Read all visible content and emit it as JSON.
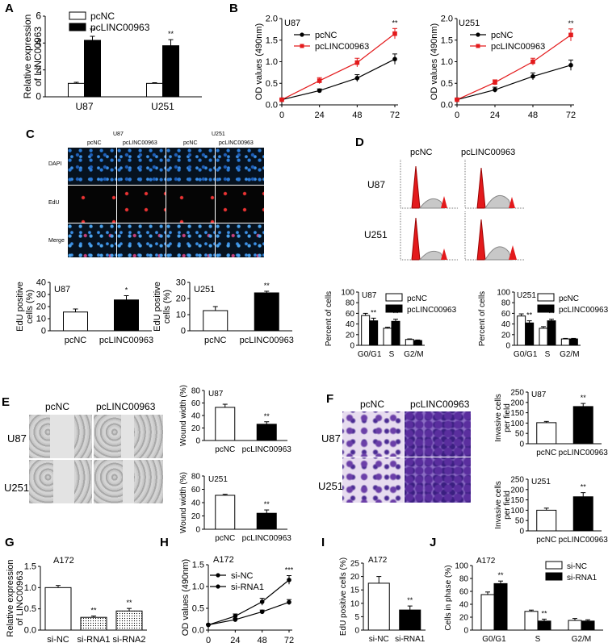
{
  "panels": {
    "A": "A",
    "B": "B",
    "C": "C",
    "D": "D",
    "E": "E",
    "F": "F",
    "G": "G",
    "H": "H",
    "I": "I",
    "J": "J"
  },
  "colors": {
    "black": "#000000",
    "white": "#ffffff",
    "red": "#e31a1c",
    "edu_red": "#e33333",
    "dapi_blue": "#2a7bd8",
    "crystal_violet": "#5a2e9e"
  },
  "labels": {
    "pcNC": "pcNC",
    "pcLINC": "pcLINC00963",
    "U87": "U87",
    "U251": "U251",
    "A172": "A172",
    "DAPI": "DAPI",
    "EdU": "EdU",
    "Merge": "Merge"
  },
  "chart_data": [
    {
      "panel": "A",
      "type": "bar",
      "categories": [
        "U87",
        "U251"
      ],
      "series": [
        {
          "name": "pcNC",
          "values": [
            1.0,
            1.0
          ],
          "errors": [
            0.08,
            0.05
          ],
          "fill": "#ffffff"
        },
        {
          "name": "pcLINC00963",
          "values": [
            4.2,
            3.8
          ],
          "errors": [
            0.3,
            0.45
          ],
          "fill": "#000000"
        }
      ],
      "significance": [
        "**",
        "**"
      ],
      "ylabel": "Relative expression of LINC00963",
      "ylim": [
        0,
        6
      ],
      "yticks": [
        0,
        2,
        4,
        6
      ]
    },
    {
      "panel": "B-U87",
      "type": "line",
      "subtitle": "U87",
      "x": [
        0,
        24,
        48,
        72
      ],
      "series": [
        {
          "name": "pcNC",
          "values": [
            0.12,
            0.33,
            0.62,
            1.06
          ],
          "errors": [
            0.02,
            0.04,
            0.08,
            0.12
          ],
          "color": "#000000"
        },
        {
          "name": "pcLINC00963",
          "values": [
            0.12,
            0.56,
            0.98,
            1.65
          ],
          "errors": [
            0.02,
            0.07,
            0.1,
            0.12
          ],
          "color": "#e31a1c"
        }
      ],
      "significance": "**",
      "ylabel": "OD values (490nm)",
      "xlim": [
        0,
        72
      ],
      "ylim": [
        0,
        2.0
      ],
      "xticks": [
        0,
        24,
        48,
        72
      ],
      "yticks": [
        0.0,
        0.5,
        1.0,
        1.5,
        2.0
      ]
    },
    {
      "panel": "B-U251",
      "type": "line",
      "subtitle": "U251",
      "x": [
        0,
        24,
        48,
        72
      ],
      "series": [
        {
          "name": "pcNC",
          "values": [
            0.12,
            0.35,
            0.66,
            0.92
          ],
          "errors": [
            0.02,
            0.06,
            0.08,
            0.12
          ],
          "color": "#000000"
        },
        {
          "name": "pcLINC00963",
          "values": [
            0.12,
            0.52,
            1.0,
            1.62
          ],
          "errors": [
            0.02,
            0.06,
            0.08,
            0.14
          ],
          "color": "#e31a1c"
        }
      ],
      "significance": "**",
      "ylabel": "OD values (490nm)",
      "xlim": [
        0,
        72
      ],
      "ylim": [
        0,
        2.0
      ],
      "xticks": [
        0,
        24,
        48,
        72
      ],
      "yticks": [
        0.0,
        0.5,
        1.0,
        1.5,
        2.0
      ]
    },
    {
      "panel": "C-U87",
      "type": "bar",
      "subtitle": "U87",
      "categories": [
        "pcNC",
        "pcLINC00963"
      ],
      "values": [
        15.5,
        25.5
      ],
      "errors": [
        2.5,
        3.5
      ],
      "fills": [
        "#ffffff",
        "#000000"
      ],
      "significance": "*",
      "ylabel": "EdU positive cells (%)",
      "ylim": [
        0,
        40
      ],
      "yticks": [
        0,
        10,
        20,
        30,
        40
      ]
    },
    {
      "panel": "C-U251",
      "type": "bar",
      "subtitle": "U251",
      "categories": [
        "pcNC",
        "pcLINC00963"
      ],
      "values": [
        12.5,
        23.5
      ],
      "errors": [
        2.5,
        1.0
      ],
      "fills": [
        "#ffffff",
        "#000000"
      ],
      "significance": "**",
      "ylabel": "EdU positive cells (%)",
      "ylim": [
        0,
        30
      ],
      "yticks": [
        0,
        10,
        20,
        30
      ]
    },
    {
      "panel": "D-U87",
      "type": "bar",
      "subtitle": "U87",
      "categories": [
        "G0/G1",
        "S",
        "G2/M"
      ],
      "series": [
        {
          "name": "pcNC",
          "values": [
            56,
            32,
            11
          ],
          "errors": [
            4,
            2,
            1
          ],
          "fill": "#ffffff"
        },
        {
          "name": "pcLINC00963",
          "values": [
            46,
            45,
            9
          ],
          "errors": [
            5,
            4,
            1
          ],
          "fill": "#000000"
        }
      ],
      "significance": [
        "**",
        "**",
        ""
      ],
      "ylabel": "Percent of cells",
      "ylim": [
        0,
        100
      ],
      "yticks": [
        0,
        20,
        40,
        60,
        80,
        100
      ]
    },
    {
      "panel": "D-U251",
      "type": "bar",
      "subtitle": "U251",
      "categories": [
        "G0/G1",
        "S",
        "G2/M"
      ],
      "series": [
        {
          "name": "pcNC",
          "values": [
            55,
            32,
            12
          ],
          "errors": [
            4,
            3,
            1
          ],
          "fill": "#ffffff"
        },
        {
          "name": "pcLINC00963",
          "values": [
            42,
            46,
            12
          ],
          "errors": [
            4,
            3,
            1
          ],
          "fill": "#000000"
        }
      ],
      "significance": [
        "**",
        "**",
        ""
      ],
      "ylabel": "Percent of cells",
      "ylim": [
        0,
        100
      ],
      "yticks": [
        0,
        20,
        40,
        60,
        80,
        100
      ]
    },
    {
      "panel": "E-U87",
      "type": "bar",
      "subtitle": "U87",
      "categories": [
        "pcNC",
        "pcLINC00963"
      ],
      "values": [
        53,
        26
      ],
      "errors": [
        5,
        4
      ],
      "fills": [
        "#ffffff",
        "#000000"
      ],
      "significance": "**",
      "ylabel": "Wound width (%)",
      "ylim": [
        0,
        80
      ],
      "yticks": [
        0,
        20,
        40,
        60,
        80
      ]
    },
    {
      "panel": "E-U251",
      "type": "bar",
      "subtitle": "U251",
      "categories": [
        "pcNC",
        "pcLINC00963"
      ],
      "values": [
        51,
        24
      ],
      "errors": [
        1.5,
        5
      ],
      "fills": [
        "#ffffff",
        "#000000"
      ],
      "significance": "**",
      "ylabel": "Wound width (%)",
      "ylim": [
        0,
        80
      ],
      "yticks": [
        0,
        20,
        40,
        60,
        80
      ]
    },
    {
      "panel": "F-U87",
      "type": "bar",
      "subtitle": "U87",
      "categories": [
        "pcNC",
        "pcLINC00963"
      ],
      "values": [
        102,
        180
      ],
      "errors": [
        6,
        15
      ],
      "fills": [
        "#ffffff",
        "#000000"
      ],
      "significance": "**",
      "ylabel": "Invasive cells per field",
      "ylim": [
        0,
        250
      ],
      "yticks": [
        0,
        50,
        100,
        150,
        200,
        250
      ]
    },
    {
      "panel": "F-U251",
      "type": "bar",
      "subtitle": "U251",
      "categories": [
        "pcNC",
        "pcLINC00963"
      ],
      "values": [
        100,
        165
      ],
      "errors": [
        10,
        20
      ],
      "fills": [
        "#ffffff",
        "#000000"
      ],
      "significance": "**",
      "ylabel": "Invasive cells per field",
      "ylim": [
        0,
        250
      ],
      "yticks": [
        0,
        50,
        100,
        150,
        200,
        250
      ]
    },
    {
      "panel": "G",
      "type": "bar",
      "subtitle": "A172",
      "categories": [
        "si-NC",
        "si-RNA1",
        "si-RNA2"
      ],
      "values": [
        1.0,
        0.3,
        0.45
      ],
      "errors": [
        0.05,
        0.03,
        0.06
      ],
      "fills": [
        "#ffffff",
        "dotted",
        "dotted"
      ],
      "significance": [
        "",
        "**",
        "**"
      ],
      "ylabel": "Relative expression of LINC00963",
      "ylim": [
        0,
        1.5
      ],
      "yticks": [
        0.0,
        0.5,
        1.0,
        1.5
      ]
    },
    {
      "panel": "H",
      "type": "line",
      "subtitle": "A172",
      "x": [
        0,
        24,
        48,
        72
      ],
      "series": [
        {
          "name": "si-NC",
          "values": [
            0.12,
            0.32,
            0.65,
            1.15
          ],
          "errors": [
            0.02,
            0.05,
            0.08,
            0.1
          ]
        },
        {
          "name": "si-RNA1",
          "values": [
            0.12,
            0.24,
            0.42,
            0.64
          ],
          "errors": [
            0.02,
            0.03,
            0.04,
            0.06
          ]
        }
      ],
      "significance": "***",
      "ylabel": "OD values (490nm)",
      "xlim": [
        0,
        72
      ],
      "ylim": [
        0,
        1.5
      ],
      "xticks": [
        0,
        24,
        48,
        72
      ],
      "yticks": [
        0.0,
        0.5,
        1.0,
        1.5
      ]
    },
    {
      "panel": "I",
      "type": "bar",
      "subtitle": "A172",
      "categories": [
        "si-NC",
        "si-RNA1"
      ],
      "values": [
        17.5,
        7.5
      ],
      "errors": [
        2.5,
        1.5
      ],
      "fills": [
        "#ffffff",
        "#000000"
      ],
      "significance": "**",
      "ylabel": "EdU positive cells (%)",
      "ylim": [
        0,
        25
      ],
      "yticks": [
        0,
        5,
        10,
        15,
        20,
        25
      ]
    },
    {
      "panel": "J",
      "type": "bar",
      "subtitle": "A172",
      "categories": [
        "G0/G1",
        "S",
        "G2/M"
      ],
      "series": [
        {
          "name": "si-NC",
          "values": [
            55,
            29,
            15
          ],
          "errors": [
            4,
            2,
            3
          ],
          "fill": "#ffffff"
        },
        {
          "name": "si-RNA1",
          "values": [
            72,
            14,
            14
          ],
          "errors": [
            4,
            3,
            2
          ],
          "fill": "#000000"
        }
      ],
      "significance": [
        "**",
        "**",
        ""
      ],
      "ylabel": "Cells in phase (%)",
      "ylim": [
        0,
        100
      ],
      "yticks": [
        0,
        20,
        40,
        60,
        80,
        100
      ]
    }
  ]
}
